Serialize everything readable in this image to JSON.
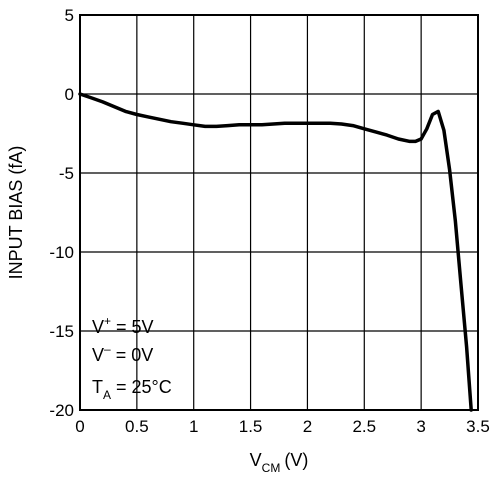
{
  "chart_data": {
    "type": "line",
    "title": "",
    "xlabel": {
      "main": "V",
      "sub": "CM",
      "unit": "(V)"
    },
    "ylabel": "INPUT BIAS (fA)",
    "xlim": [
      0,
      3.5
    ],
    "ylim": [
      -20,
      5
    ],
    "x_ticks": [
      0,
      0.5,
      1,
      1.5,
      2,
      2.5,
      3,
      3.5
    ],
    "x_tick_labels": [
      "0",
      "0.5",
      "1",
      "1.5",
      "2",
      "2.5",
      "3",
      "3.5"
    ],
    "y_ticks": [
      5,
      0,
      -5,
      -10,
      -15,
      -20
    ],
    "y_tick_labels": [
      "5",
      "0",
      "-5",
      "-10",
      "-15",
      "-20"
    ],
    "grid": true,
    "annotations": [
      {
        "main": "V",
        "sup": "+",
        "rest": " = 5V"
      },
      {
        "main": "V",
        "sup": "–",
        "rest": " = 0V"
      },
      {
        "main": "T",
        "sub": "A",
        "rest": " = 25°C"
      }
    ],
    "series": [
      {
        "color": "#000000",
        "x": [
          0,
          0.1,
          0.2,
          0.3,
          0.4,
          0.5,
          0.6,
          0.7,
          0.8,
          0.9,
          1.0,
          1.1,
          1.2,
          1.3,
          1.4,
          1.5,
          1.6,
          1.7,
          1.8,
          1.9,
          2.0,
          2.1,
          2.2,
          2.3,
          2.4,
          2.5,
          2.6,
          2.7,
          2.8,
          2.9,
          2.95,
          3.0,
          3.05,
          3.1,
          3.15,
          3.2,
          3.25,
          3.3,
          3.35,
          3.4,
          3.44
        ],
        "y": [
          0,
          -0.25,
          -0.5,
          -0.8,
          -1.1,
          -1.3,
          -1.45,
          -1.6,
          -1.75,
          -1.85,
          -1.95,
          -2.05,
          -2.05,
          -2.0,
          -1.95,
          -1.95,
          -1.95,
          -1.9,
          -1.85,
          -1.85,
          -1.85,
          -1.85,
          -1.85,
          -1.9,
          -2.0,
          -2.2,
          -2.4,
          -2.6,
          -2.85,
          -3.0,
          -3.0,
          -2.85,
          -2.2,
          -1.3,
          -1.1,
          -2.3,
          -4.8,
          -8.0,
          -12.0,
          -16.0,
          -20.0
        ]
      }
    ]
  }
}
